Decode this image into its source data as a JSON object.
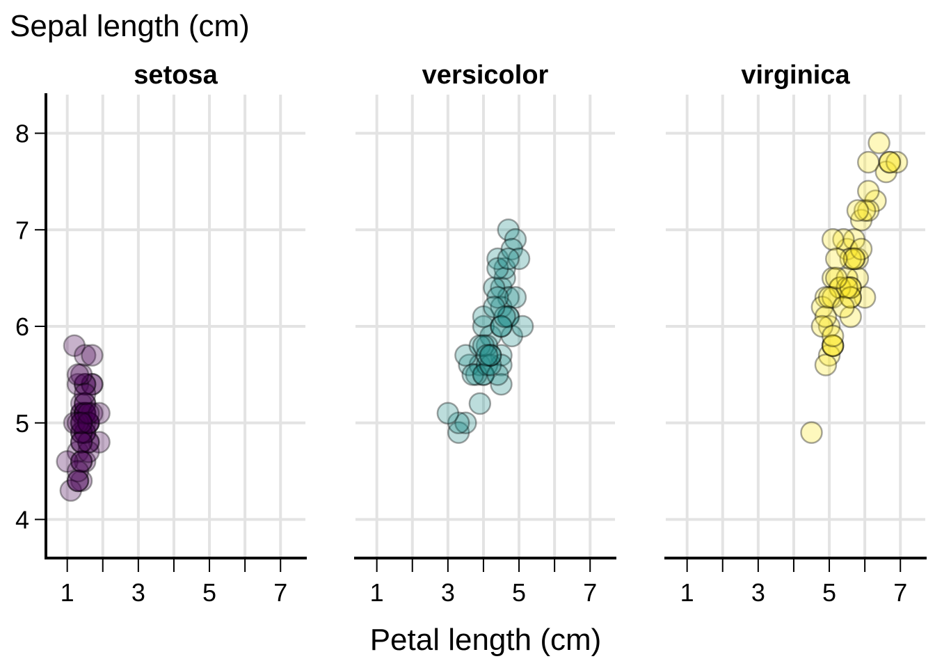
{
  "chart_data": {
    "type": "scatter",
    "ylabel": "Sepal length (cm)",
    "xlabel": "Petal length (cm)",
    "xlim": [
      0.4,
      7.7
    ],
    "ylim": [
      3.6,
      8.4
    ],
    "x_ticks": [
      1,
      2,
      3,
      4,
      5,
      6,
      7
    ],
    "x_tick_labels": [
      "1",
      "",
      "3",
      "",
      "5",
      "",
      "7"
    ],
    "y_ticks": [
      4,
      5,
      6,
      7,
      8
    ],
    "y_tick_labels": [
      "4",
      "5",
      "6",
      "7",
      "8"
    ],
    "grid": true,
    "point_opacity": 0.3,
    "facets": [
      {
        "title": "setosa",
        "color": "#440154",
        "points": [
          [
            1.4,
            5.1
          ],
          [
            1.4,
            4.9
          ],
          [
            1.3,
            4.7
          ],
          [
            1.5,
            4.6
          ],
          [
            1.4,
            5.0
          ],
          [
            1.7,
            5.4
          ],
          [
            1.4,
            4.6
          ],
          [
            1.5,
            5.0
          ],
          [
            1.4,
            4.4
          ],
          [
            1.5,
            4.9
          ],
          [
            1.5,
            5.4
          ],
          [
            1.6,
            4.8
          ],
          [
            1.4,
            4.8
          ],
          [
            1.1,
            4.3
          ],
          [
            1.2,
            5.8
          ],
          [
            1.5,
            5.7
          ],
          [
            1.3,
            5.4
          ],
          [
            1.4,
            5.1
          ],
          [
            1.7,
            5.7
          ],
          [
            1.5,
            5.1
          ],
          [
            1.7,
            5.4
          ],
          [
            1.5,
            5.1
          ],
          [
            1.0,
            4.6
          ],
          [
            1.7,
            5.1
          ],
          [
            1.9,
            4.8
          ],
          [
            1.6,
            5.0
          ],
          [
            1.6,
            5.0
          ],
          [
            1.5,
            5.2
          ],
          [
            1.4,
            5.2
          ],
          [
            1.6,
            4.7
          ],
          [
            1.6,
            4.8
          ],
          [
            1.5,
            5.4
          ],
          [
            1.5,
            5.2
          ],
          [
            1.4,
            5.5
          ],
          [
            1.5,
            4.9
          ],
          [
            1.2,
            5.0
          ],
          [
            1.3,
            5.5
          ],
          [
            1.4,
            4.9
          ],
          [
            1.3,
            4.4
          ],
          [
            1.5,
            5.1
          ],
          [
            1.3,
            5.0
          ],
          [
            1.3,
            4.5
          ],
          [
            1.3,
            4.4
          ],
          [
            1.6,
            5.0
          ],
          [
            1.9,
            5.1
          ],
          [
            1.4,
            4.8
          ],
          [
            1.6,
            5.1
          ],
          [
            1.4,
            4.6
          ],
          [
            1.5,
            5.3
          ],
          [
            1.4,
            5.0
          ]
        ]
      },
      {
        "title": "versicolor",
        "color": "#21908c",
        "points": [
          [
            4.7,
            7.0
          ],
          [
            4.5,
            6.4
          ],
          [
            4.9,
            6.9
          ],
          [
            4.0,
            5.5
          ],
          [
            4.6,
            6.5
          ],
          [
            4.5,
            5.7
          ],
          [
            4.7,
            6.3
          ],
          [
            3.3,
            4.9
          ],
          [
            4.6,
            6.6
          ],
          [
            3.9,
            5.2
          ],
          [
            3.5,
            5.0
          ],
          [
            4.2,
            5.9
          ],
          [
            4.0,
            6.0
          ],
          [
            4.7,
            6.1
          ],
          [
            3.6,
            5.6
          ],
          [
            4.4,
            6.7
          ],
          [
            4.5,
            5.6
          ],
          [
            4.1,
            5.8
          ],
          [
            4.5,
            6.2
          ],
          [
            3.9,
            5.6
          ],
          [
            4.8,
            5.9
          ],
          [
            4.0,
            6.1
          ],
          [
            4.9,
            6.3
          ],
          [
            4.7,
            6.1
          ],
          [
            4.3,
            6.4
          ],
          [
            4.4,
            6.6
          ],
          [
            4.8,
            6.8
          ],
          [
            5.0,
            6.7
          ],
          [
            4.5,
            6.0
          ],
          [
            3.5,
            5.7
          ],
          [
            3.8,
            5.5
          ],
          [
            3.7,
            5.5
          ],
          [
            3.9,
            5.8
          ],
          [
            5.1,
            6.0
          ],
          [
            4.5,
            5.4
          ],
          [
            4.5,
            6.0
          ],
          [
            4.7,
            6.7
          ],
          [
            4.4,
            6.3
          ],
          [
            4.1,
            5.6
          ],
          [
            4.0,
            5.5
          ],
          [
            4.4,
            5.5
          ],
          [
            4.6,
            6.1
          ],
          [
            4.0,
            5.8
          ],
          [
            3.3,
            5.0
          ],
          [
            4.2,
            5.6
          ],
          [
            4.2,
            5.7
          ],
          [
            4.2,
            5.7
          ],
          [
            4.3,
            6.2
          ],
          [
            3.0,
            5.1
          ],
          [
            4.1,
            5.7
          ]
        ]
      },
      {
        "title": "virginica",
        "color": "#fde725",
        "points": [
          [
            6.0,
            6.3
          ],
          [
            5.1,
            5.8
          ],
          [
            5.9,
            7.1
          ],
          [
            5.6,
            6.3
          ],
          [
            5.8,
            6.5
          ],
          [
            6.6,
            7.6
          ],
          [
            4.5,
            4.9
          ],
          [
            6.3,
            7.3
          ],
          [
            5.8,
            6.7
          ],
          [
            6.1,
            7.2
          ],
          [
            5.1,
            6.5
          ],
          [
            5.3,
            6.4
          ],
          [
            5.5,
            6.8
          ],
          [
            5.0,
            5.7
          ],
          [
            5.1,
            5.8
          ],
          [
            5.3,
            6.4
          ],
          [
            5.5,
            6.5
          ],
          [
            6.7,
            7.7
          ],
          [
            6.9,
            7.7
          ],
          [
            5.0,
            6.0
          ],
          [
            5.7,
            6.9
          ],
          [
            4.9,
            5.6
          ],
          [
            6.7,
            7.7
          ],
          [
            4.9,
            6.3
          ],
          [
            5.7,
            6.7
          ],
          [
            6.0,
            7.2
          ],
          [
            4.8,
            6.2
          ],
          [
            4.9,
            6.1
          ],
          [
            5.6,
            6.4
          ],
          [
            5.8,
            7.2
          ],
          [
            6.1,
            7.4
          ],
          [
            6.4,
            7.9
          ],
          [
            5.6,
            6.4
          ],
          [
            5.1,
            6.3
          ],
          [
            5.6,
            6.1
          ],
          [
            6.1,
            7.7
          ],
          [
            5.6,
            6.3
          ],
          [
            5.5,
            6.4
          ],
          [
            4.8,
            6.0
          ],
          [
            5.4,
            6.9
          ],
          [
            5.6,
            6.7
          ],
          [
            5.1,
            6.9
          ],
          [
            5.1,
            5.8
          ],
          [
            5.9,
            6.8
          ],
          [
            5.7,
            6.7
          ],
          [
            5.2,
            6.7
          ],
          [
            5.0,
            6.3
          ],
          [
            5.2,
            6.5
          ],
          [
            5.4,
            6.2
          ],
          [
            5.1,
            5.9
          ]
        ]
      }
    ]
  }
}
